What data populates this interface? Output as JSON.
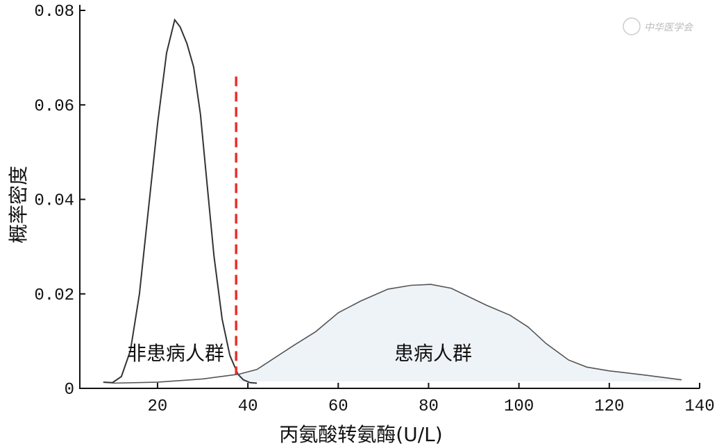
{
  "chart_data": {
    "type": "line",
    "title": "",
    "xlabel": "丙氨酸转氨酶(U/L)",
    "ylabel": "概率密度",
    "xlim": [
      2.8,
      140
    ],
    "ylim": [
      0,
      0.08
    ],
    "xticks": [
      20,
      40,
      60,
      80,
      100,
      120,
      140
    ],
    "xtick_labels": [
      "20",
      "40",
      "60",
      "80",
      "100",
      "120",
      "140"
    ],
    "yticks": [
      0,
      0.02,
      0.04,
      0.06,
      0.08
    ],
    "ytick_labels": [
      "0",
      "0.02",
      "0.04",
      "0.06",
      "0.08"
    ],
    "grid": false,
    "series": [
      {
        "name": "非患病人群",
        "color": "#333333",
        "fill": false,
        "x": [
          8,
          10,
          12,
          14,
          16,
          18,
          20,
          22,
          23.8,
          25,
          26.5,
          28,
          29.5,
          31,
          32.5,
          34.3,
          36,
          37.8,
          39,
          40.5,
          42
        ],
        "y": [
          0.0013,
          0.0012,
          0.0025,
          0.008,
          0.02,
          0.038,
          0.056,
          0.071,
          0.078,
          0.0765,
          0.073,
          0.068,
          0.058,
          0.043,
          0.028,
          0.0147,
          0.007,
          0.003,
          0.0018,
          0.0012,
          0.0011
        ]
      },
      {
        "name": "患病人群",
        "color": "#333333",
        "fill": "#eef3f8",
        "x": [
          10,
          20,
          30,
          38,
          42,
          46,
          50,
          55,
          60,
          65,
          71,
          76,
          80.5,
          85,
          92.8,
          98,
          102,
          106,
          111,
          115,
          120,
          128,
          136
        ],
        "y": [
          0.0011,
          0.0013,
          0.002,
          0.003,
          0.004,
          0.0065,
          0.009,
          0.012,
          0.016,
          0.0185,
          0.021,
          0.0218,
          0.022,
          0.0212,
          0.0176,
          0.0155,
          0.013,
          0.0095,
          0.006,
          0.0045,
          0.0037,
          0.0028,
          0.0018
        ]
      }
    ],
    "threshold_line": {
      "x": 37.4,
      "y_top": 0.066,
      "y_bottom": 0.003,
      "color": "#e8302c",
      "style": "dashed"
    },
    "annotations": [
      {
        "text": "非患病人群",
        "x": 24,
        "y": 0.0075
      },
      {
        "text": "患病人群",
        "x": 81,
        "y": 0.0075
      }
    ],
    "watermark": "中华医学会"
  }
}
